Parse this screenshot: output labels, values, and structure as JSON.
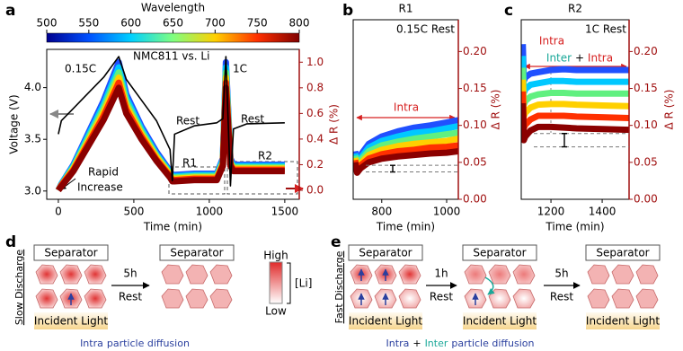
{
  "panels": [
    "a",
    "b",
    "c",
    "d",
    "e"
  ],
  "chart_data": [
    {
      "type": "line",
      "xlabel": "Time (min)",
      "ylabel": "Voltage (V)",
      "y2label": "Δ R (%)",
      "x": [
        0,
        20,
        100,
        200,
        300,
        400,
        450,
        550,
        650,
        740,
        755,
        770,
        900,
        1050,
        1090,
        1110,
        1140,
        1160,
        1250,
        1500
      ],
      "xlim": [
        -77,
        1596
      ],
      "xticks": [
        0,
        500,
        1000,
        1500
      ],
      "ylim": [
        2.92,
        4.37
      ],
      "yticks": [
        {
          "value": 3,
          "label": "3.0"
        },
        3.5,
        {
          "value": 4,
          "label": "4.0"
        }
      ],
      "y2lim": [
        -0.07,
        1.1
      ],
      "y2ticks": [
        {
          "value": 0,
          "label": "0.0"
        },
        0.2,
        0.4,
        0.6,
        0.8,
        {
          "value": 1,
          "label": "1.0"
        }
      ],
      "series": [
        {
          "color": "#000000",
          "values": [
            3.55,
            3.68,
            3.8,
            3.95,
            4.1,
            4.3,
            4.08,
            3.88,
            3.68,
            3.4,
            3.1,
            3.55,
            3.63,
            3.66,
            3.7,
            4.3,
            3.05,
            3.6,
            3.65,
            3.66
          ]
        },
        {
          "color": "#2050ff",
          "axis": "y2",
          "values": [
            0.0,
            0.05,
            0.2,
            0.45,
            0.7,
            1.0,
            0.75,
            0.5,
            0.3,
            0.15,
            0.12,
            0.12,
            0.13,
            0.13,
            0.25,
            1.0,
            0.25,
            0.2,
            0.2,
            0.2
          ]
        },
        {
          "color": "#00c8ff",
          "axis": "y2",
          "values": [
            0.0,
            0.05,
            0.19,
            0.43,
            0.67,
            0.96,
            0.72,
            0.48,
            0.28,
            0.14,
            0.11,
            0.11,
            0.12,
            0.12,
            0.24,
            0.96,
            0.23,
            0.19,
            0.19,
            0.19
          ]
        },
        {
          "color": "#60f080",
          "axis": "y2",
          "values": [
            0.0,
            0.04,
            0.18,
            0.41,
            0.64,
            0.92,
            0.69,
            0.46,
            0.27,
            0.13,
            0.1,
            0.1,
            0.11,
            0.11,
            0.22,
            0.92,
            0.22,
            0.18,
            0.18,
            0.18
          ]
        },
        {
          "color": "#ffd000",
          "axis": "y2",
          "values": [
            0.0,
            0.04,
            0.17,
            0.39,
            0.61,
            0.88,
            0.66,
            0.44,
            0.26,
            0.12,
            0.09,
            0.09,
            0.1,
            0.1,
            0.21,
            0.88,
            0.21,
            0.17,
            0.17,
            0.17
          ]
        },
        {
          "color": "#ff3000",
          "axis": "y2",
          "values": [
            0.0,
            0.04,
            0.16,
            0.37,
            0.58,
            0.84,
            0.63,
            0.42,
            0.24,
            0.11,
            0.08,
            0.08,
            0.09,
            0.09,
            0.2,
            0.84,
            0.2,
            0.16,
            0.16,
            0.16
          ]
        },
        {
          "color": "#8b0000",
          "axis": "y2",
          "values": [
            0.0,
            0.03,
            0.15,
            0.35,
            0.55,
            0.8,
            0.6,
            0.4,
            0.23,
            0.1,
            0.07,
            0.07,
            0.08,
            0.08,
            0.19,
            0.8,
            0.19,
            0.15,
            0.15,
            0.15
          ]
        }
      ],
      "colorbar": {
        "label": "Wavelength",
        "lim": [
          500,
          800
        ],
        "ticks": [
          500,
          550,
          600,
          650,
          700,
          750,
          800
        ],
        "colors": [
          "#00008f",
          "#0050ff",
          "#00d0ff",
          "#80ff80",
          "#ffd000",
          "#ff3000",
          "#800000"
        ]
      },
      "annotations": [
        "NMC811 vs. Li",
        "0.15C",
        "1C",
        "Rest",
        "Rest",
        "R1",
        "R2",
        "Rapid",
        "Increase"
      ]
    },
    {
      "type": "line",
      "title": "R1",
      "xlabel": "Time (min)",
      "y2label": "Δ R (%)",
      "x": [
        718,
        724,
        735,
        760,
        800,
        850,
        900,
        950,
        1000,
        1036
      ],
      "xlim": [
        712,
        1036
      ],
      "xticks": [
        800,
        1000
      ],
      "y2lim": [
        0,
        0.243
      ],
      "y2ticks": [
        {
          "value": 0,
          "label": "0.00"
        },
        {
          "value": 0.05,
          "label": "0.05"
        },
        {
          "value": 0.1,
          "label": "0.10"
        },
        {
          "value": 0.15,
          "label": "0.15"
        },
        {
          "value": 0.2,
          "label": "0.20"
        }
      ],
      "ref_lines": [
        0.046,
        0.037
      ],
      "series": [
        {
          "color": "#2050ff",
          "axis": "y2",
          "values": [
            0.065,
            0.05,
            0.06,
            0.075,
            0.085,
            0.092,
            0.097,
            0.1,
            0.104,
            0.107
          ]
        },
        {
          "color": "#00c8ff",
          "axis": "y2",
          "values": [
            0.062,
            0.047,
            0.056,
            0.07,
            0.079,
            0.085,
            0.09,
            0.092,
            0.096,
            0.099
          ]
        },
        {
          "color": "#60f080",
          "axis": "y2",
          "values": [
            0.059,
            0.044,
            0.053,
            0.065,
            0.073,
            0.078,
            0.082,
            0.085,
            0.088,
            0.09
          ]
        },
        {
          "color": "#ffd000",
          "axis": "y2",
          "values": [
            0.056,
            0.042,
            0.049,
            0.06,
            0.067,
            0.072,
            0.075,
            0.077,
            0.079,
            0.082
          ]
        },
        {
          "color": "#ff3000",
          "axis": "y2",
          "values": [
            0.053,
            0.039,
            0.046,
            0.055,
            0.061,
            0.065,
            0.067,
            0.07,
            0.071,
            0.073
          ]
        },
        {
          "color": "#8b0000",
          "axis": "y2",
          "values": [
            0.05,
            0.036,
            0.042,
            0.05,
            0.055,
            0.058,
            0.06,
            0.062,
            0.063,
            0.065
          ]
        }
      ],
      "annotations": [
        "0.15C Rest",
        "Intra"
      ]
    },
    {
      "type": "line",
      "title": "R2",
      "xlabel": "Time (min)",
      "y2label": "Δ R (%)",
      "x": [
        1090,
        1094,
        1100,
        1120,
        1150,
        1200,
        1250,
        1300,
        1400,
        1505
      ],
      "xlim": [
        1084,
        1505
      ],
      "xticks": [
        1200,
        1400
      ],
      "y2lim": [
        0,
        0.243
      ],
      "y2ticks": [
        {
          "value": 0,
          "label": "0.00"
        },
        {
          "value": 0.05,
          "label": "0.05"
        },
        {
          "value": 0.1,
          "label": "0.10"
        },
        {
          "value": 0.15,
          "label": "0.15"
        },
        {
          "value": 0.2,
          "label": "0.20"
        }
      ],
      "ref_lines": [
        0.089,
        0.071
      ],
      "series": [
        {
          "color": "#2050ff",
          "axis": "y2",
          "values": [
            0.21,
            0.16,
            0.165,
            0.17,
            0.172,
            0.175,
            0.176,
            0.175,
            0.175,
            0.175
          ]
        },
        {
          "color": "#00c8ff",
          "axis": "y2",
          "values": [
            0.194,
            0.144,
            0.149,
            0.155,
            0.157,
            0.16,
            0.16,
            0.159,
            0.159,
            0.159
          ]
        },
        {
          "color": "#60f080",
          "axis": "y2",
          "values": [
            0.178,
            0.128,
            0.133,
            0.139,
            0.142,
            0.144,
            0.144,
            0.143,
            0.143,
            0.143
          ]
        },
        {
          "color": "#ffd000",
          "axis": "y2",
          "values": [
            0.162,
            0.112,
            0.117,
            0.124,
            0.128,
            0.129,
            0.129,
            0.128,
            0.127,
            0.126
          ]
        },
        {
          "color": "#ff3000",
          "axis": "y2",
          "values": [
            0.146,
            0.096,
            0.101,
            0.108,
            0.113,
            0.113,
            0.113,
            0.112,
            0.111,
            0.11
          ]
        },
        {
          "color": "#8b0000",
          "axis": "y2",
          "values": [
            0.13,
            0.08,
            0.085,
            0.093,
            0.098,
            0.098,
            0.097,
            0.096,
            0.095,
            0.094
          ]
        }
      ],
      "annotations": [
        "1C Rest",
        "Intra",
        "Inter",
        "+",
        "Intra"
      ]
    }
  ],
  "diagram_d": {
    "side_label": "Slow Discharge",
    "separators": [
      "Separator",
      "Separator"
    ],
    "light": "Incident Light",
    "step": [
      "5h",
      "Rest"
    ],
    "scale": {
      "high": "High",
      "label": "[Li]",
      "low": "Low"
    },
    "caption": [
      "Intra",
      "particle diffusion"
    ]
  },
  "diagram_e": {
    "side_label": "Fast Discharge",
    "separators": [
      "Separator",
      "Separator",
      "Separator"
    ],
    "light": [
      "Incident Light",
      "Incident Light",
      "Incident Light"
    ],
    "steps": [
      [
        "1h",
        "Rest"
      ],
      [
        "5h",
        "Rest"
      ]
    ],
    "caption": [
      "Intra",
      "+",
      "Inter",
      "particle diffusion"
    ]
  }
}
